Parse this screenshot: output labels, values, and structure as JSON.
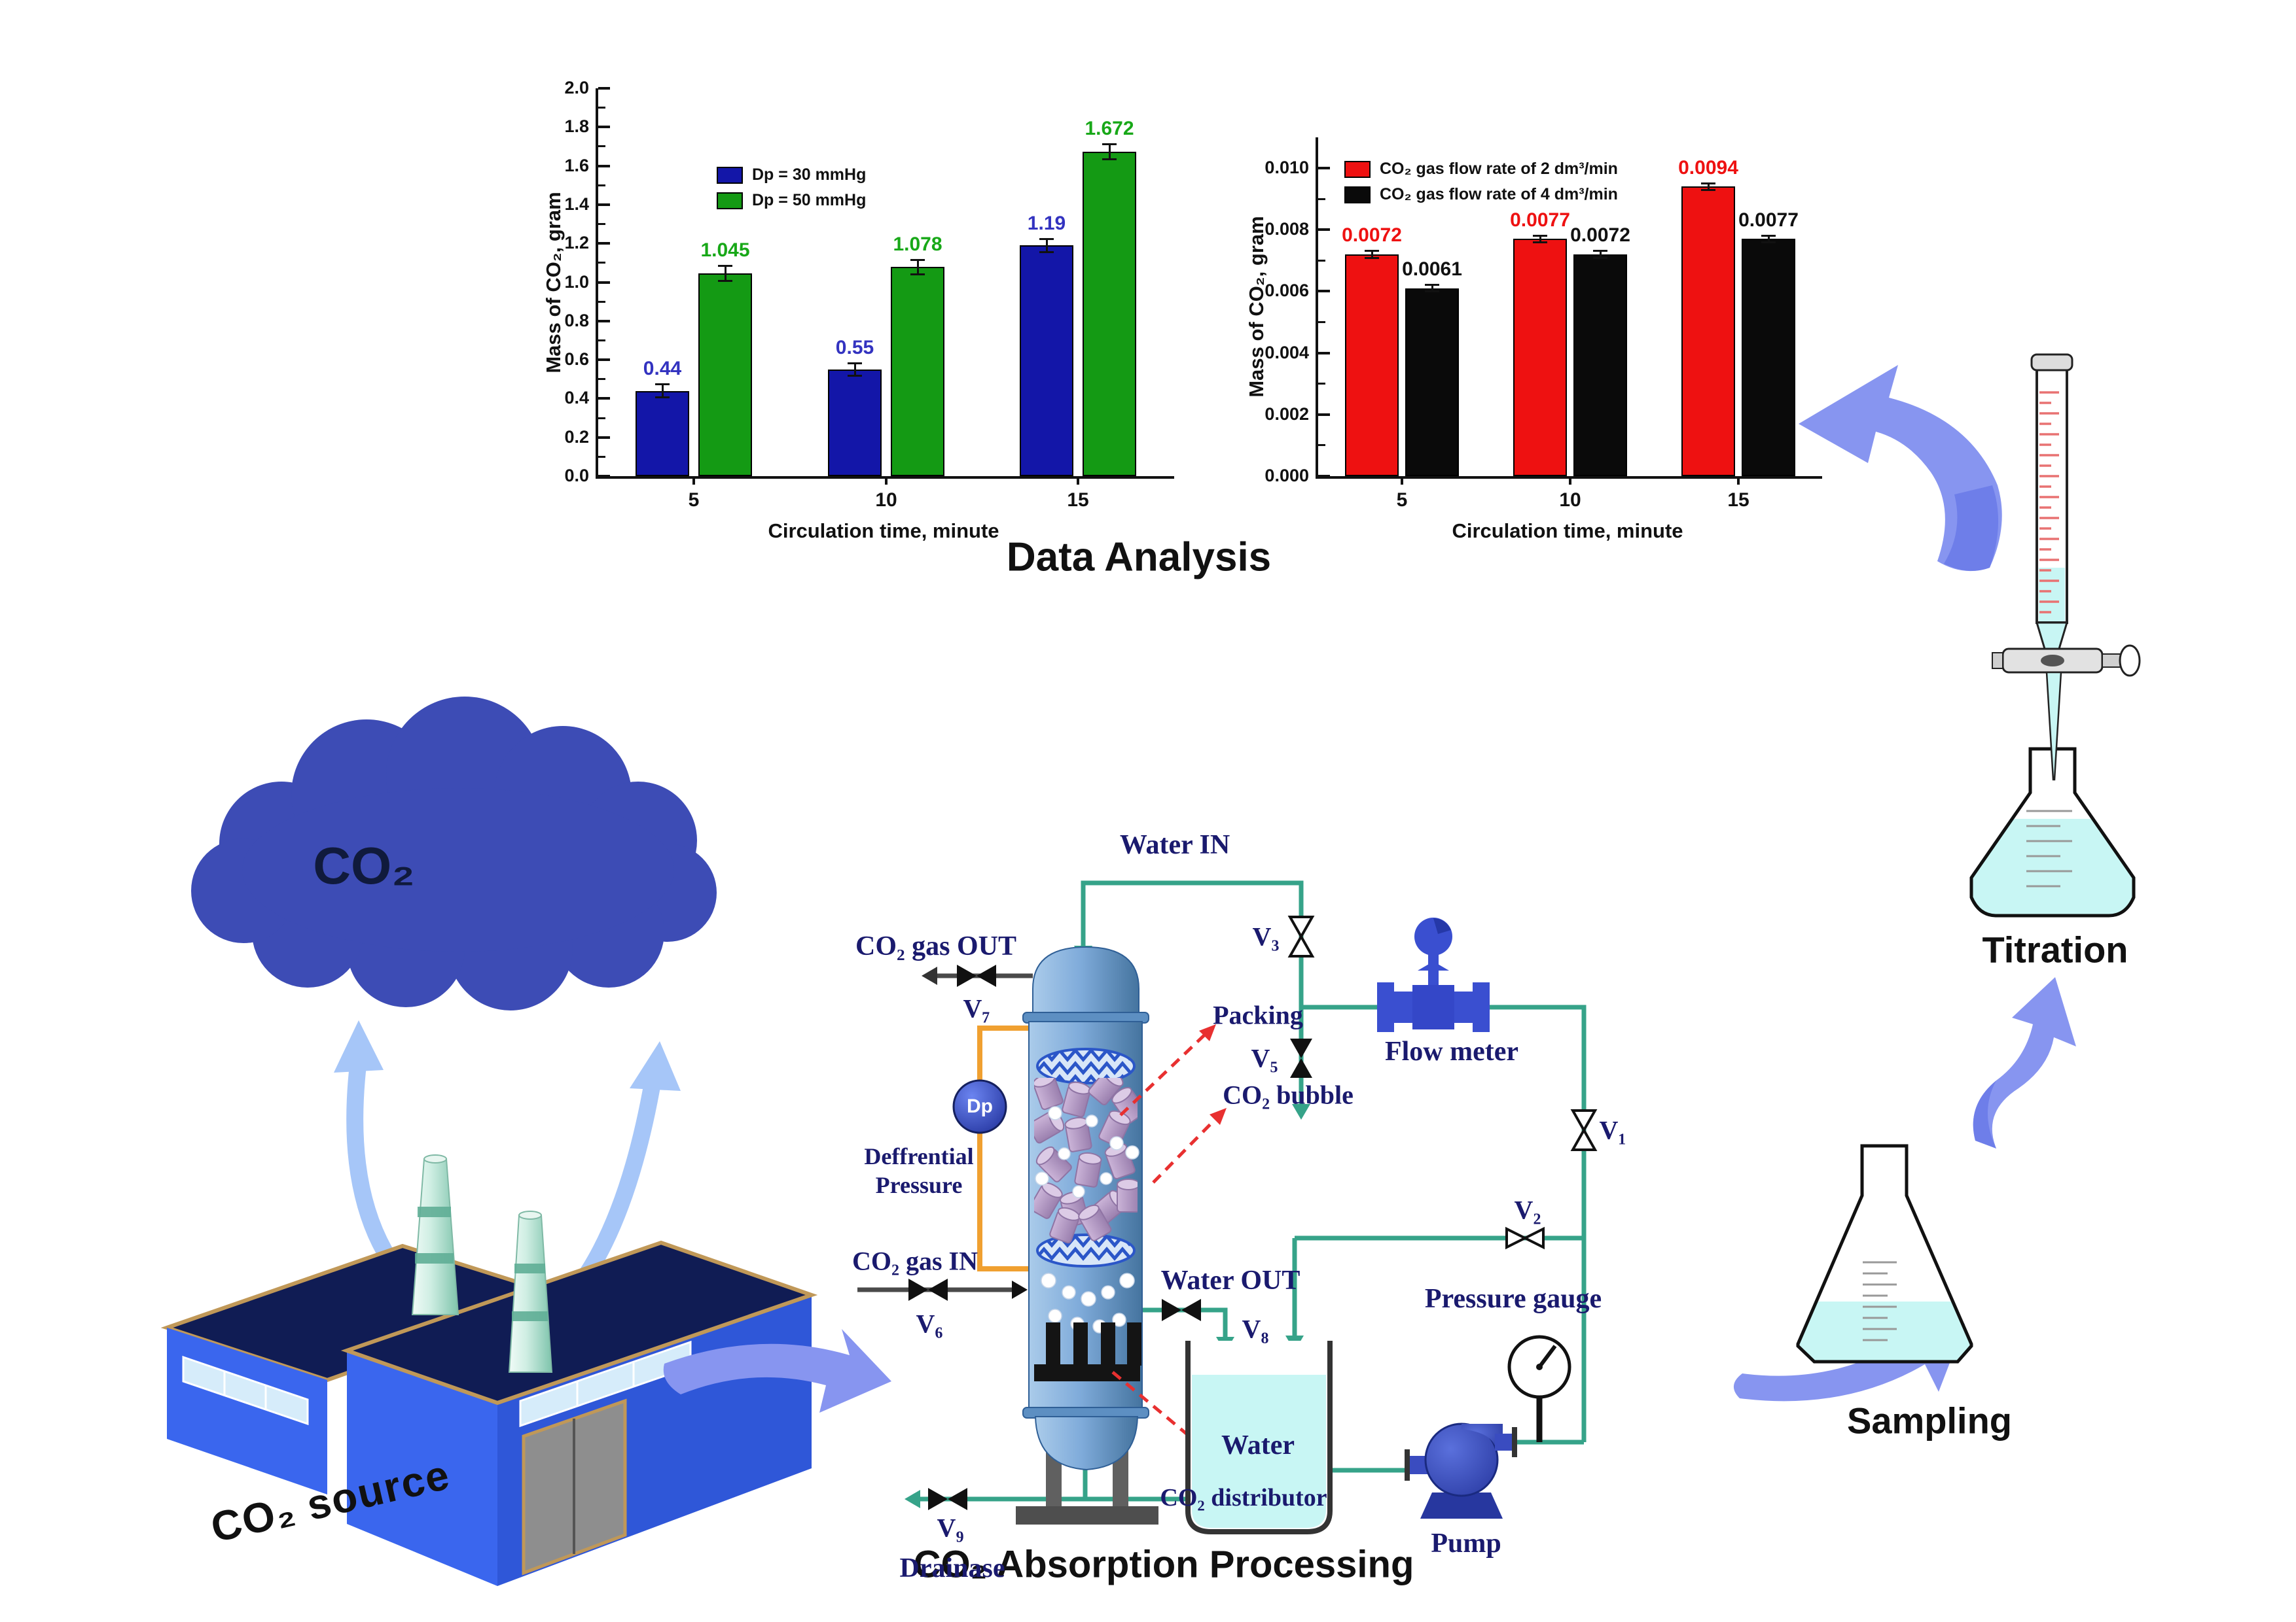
{
  "titles": {
    "data_analysis": "Data Analysis",
    "absorption": "CO₂ Absorption Processing",
    "titration": "Titration",
    "sampling": "Sampling",
    "co2_source": "CO₂ source",
    "co2_cloud": "CO₂"
  },
  "chart_data": [
    {
      "type": "bar",
      "title": "",
      "categories": [
        "5",
        "10",
        "15"
      ],
      "series": [
        {
          "name": "Dp = 30 mmHg",
          "color": "#1316A8",
          "label_color": "#3333C0",
          "values": [
            0.44,
            0.55,
            1.19
          ],
          "labels": [
            "0.44",
            "0.55",
            "1.19"
          ],
          "error": 0.035
        },
        {
          "name": "Dp = 50 mmHg",
          "color": "#149A14",
          "label_color": "#18A818",
          "values": [
            1.045,
            1.078,
            1.672
          ],
          "labels": [
            "1.045",
            "1.078",
            "1.672"
          ],
          "error": 0.04
        }
      ],
      "xlabel": "Circulation time, minute",
      "ylabel": "Mass of CO₂, gram",
      "ylim": [
        0,
        2.0
      ],
      "yticks": [
        "0.0",
        "0.2",
        "0.4",
        "0.6",
        "0.8",
        "1.0",
        "1.2",
        "1.4",
        "1.6",
        "1.8",
        "2.0"
      ],
      "yminor": 0.1,
      "grid": false,
      "legend_position": "upper-left-inside"
    },
    {
      "type": "bar",
      "title": "",
      "categories": [
        "5",
        "10",
        "15"
      ],
      "series": [
        {
          "name": "CO₂ gas flow rate of 2 dm³/min",
          "color": "#EE1111",
          "label_color": "#EE1111",
          "values": [
            0.0072,
            0.0077,
            0.0094
          ],
          "labels": [
            "0.0072",
            "0.0077",
            "0.0094"
          ],
          "error": 0.00012
        },
        {
          "name": "CO₂ gas flow rate of 4 dm³/min",
          "color": "#0A0A0A",
          "label_color": "#111111",
          "values": [
            0.0061,
            0.0072,
            0.0077
          ],
          "labels": [
            "0.0061",
            "0.0072",
            "0.0077"
          ],
          "error": 0.00012
        }
      ],
      "xlabel": "Circulation time, minute",
      "ylabel": "Mass of CO₂, gram",
      "ylim": [
        0,
        0.011
      ],
      "yticks": [
        "0.000",
        "0.002",
        "0.004",
        "0.006",
        "0.008",
        "0.010"
      ],
      "yminor": 0.001,
      "grid": false,
      "legend_position": "upper-left-inside"
    }
  ],
  "diagram": {
    "water_in": "Water IN",
    "co2_gas_out": "CO₂ gas OUT",
    "v7": "V₇",
    "packing": "Packing",
    "co2_bubble": "CO₂ bubble",
    "diff_pressure_line1": "Deffrential",
    "diff_pressure_line2": "Pressure",
    "dp": "Dp",
    "co2_gas_in": "CO₂ gas IN",
    "v6": "V₆",
    "v9": "V₉",
    "drainase": "Drainase",
    "water_out": "Water OUT",
    "v8": "V₈",
    "water": "Water",
    "v3": "V₃",
    "v5": "V₅",
    "flow_meter": "Flow meter",
    "v1": "V₁",
    "v2": "V₂",
    "pressure_gauge": "Pressure gauge",
    "pump": "Pump",
    "co2_distributor": "CO₂ distributor"
  },
  "colors": {
    "pipe_teal": "#36A389",
    "pressure_tap_orange": "#F0A030",
    "arrow_periwinkle": "#8795F0",
    "arrow_periwinkle_dark": "#6E7EE9",
    "arrow_lightblue": "#A6C6F8",
    "label_navy": "#1A1A6E",
    "liquid_cyan": "#C8F6F4",
    "vessel_blue": "#6B9ED0",
    "packing_lavender": "#B89CC8",
    "factory_blue": "#3A66EE",
    "roof_navy": "#101C54",
    "roof_edge_tan": "#C09858",
    "cloud_indigo": "#3D4CB5",
    "device_royal_blue": "#3A4FD0"
  }
}
